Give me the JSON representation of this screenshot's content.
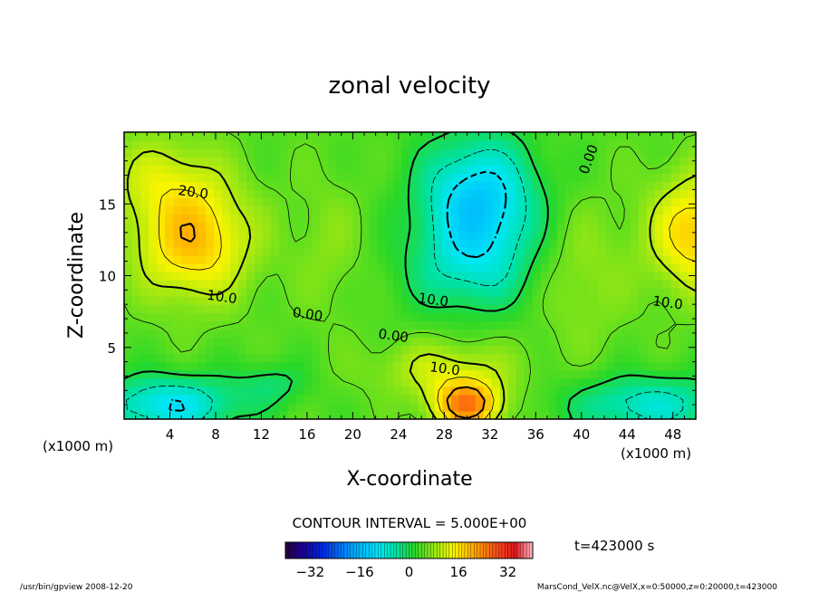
{
  "chart_data": {
    "type": "heatmap",
    "title": "zonal velocity",
    "xlabel": "X-coordinate",
    "ylabel": "Z-coordinate",
    "x_unit_left": "(x1000 m)",
    "x_unit_right": "(x1000 m)",
    "xlim": [
      0,
      50
    ],
    "ylim": [
      0,
      20
    ],
    "x_ticks": [
      4,
      8,
      12,
      16,
      20,
      24,
      28,
      32,
      36,
      40,
      44,
      48
    ],
    "y_ticks": [
      5,
      10,
      15
    ],
    "contour_interval_text": "CONTOUR INTERVAL = 5.000E+00",
    "time_text": "t=423000 s",
    "colorbar": {
      "min": -40,
      "max": 40,
      "ticks": [
        -32,
        -16,
        0,
        16,
        32
      ]
    },
    "contour_labels": [
      {
        "text": "20.0",
        "x": 6.0,
        "y": 15.5
      },
      {
        "text": "10.0",
        "x": 8.5,
        "y": 8.2
      },
      {
        "text": "0.00",
        "x": 16.0,
        "y": 7.0
      },
      {
        "text": "0.00",
        "x": 23.5,
        "y": 5.5
      },
      {
        "text": "10.0",
        "x": 27.0,
        "y": 8.0
      },
      {
        "text": "10.0",
        "x": 28.0,
        "y": 3.2
      },
      {
        "text": "0.00",
        "x": 41.0,
        "y": 18.0
      },
      {
        "text": "10.0",
        "x": 47.5,
        "y": 7.8
      }
    ],
    "field_features": [
      {
        "x": 6,
        "z": 12.5,
        "sx": 5.0,
        "sz": 4.0,
        "amp": 15
      },
      {
        "x": 3,
        "z": 17.0,
        "sx": 5.0,
        "sz": 3.0,
        "amp": 6
      },
      {
        "x": 50,
        "z": 13.0,
        "sx": 4.0,
        "sz": 4.0,
        "amp": 14
      },
      {
        "x": 30,
        "z": 1.0,
        "sx": 3.0,
        "sz": 1.7,
        "amp": 20
      },
      {
        "x": 28,
        "z": 3.5,
        "sx": 6.0,
        "sz": 2.0,
        "amp": 7
      },
      {
        "x": 31,
        "z": 15.0,
        "sx": 5.0,
        "sz": 4.5,
        "amp": -18
      },
      {
        "x": 30,
        "z": 10.0,
        "sx": 6.0,
        "sz": 3.0,
        "amp": -6
      },
      {
        "x": 4,
        "z": 1.0,
        "sx": 6.0,
        "sz": 2.0,
        "amp": -14
      },
      {
        "x": 46,
        "z": 1.0,
        "sx": 7.0,
        "sz": 2.0,
        "amp": -11
      },
      {
        "x": 13,
        "z": 2.5,
        "sx": 3.0,
        "sz": 1.5,
        "amp": -5
      },
      {
        "x": 18,
        "z": 12.0,
        "sx": 3.0,
        "sz": 5.0,
        "amp": 3
      },
      {
        "x": 40,
        "z": 10.0,
        "sx": 4.0,
        "sz": 5.0,
        "amp": 4
      }
    ]
  },
  "footer": {
    "left": "/usr/bin/gpview   2008-12-20",
    "right": "MarsCond_VelX.nc@VelX,x=0:50000,z=0:20000,t=423000"
  }
}
